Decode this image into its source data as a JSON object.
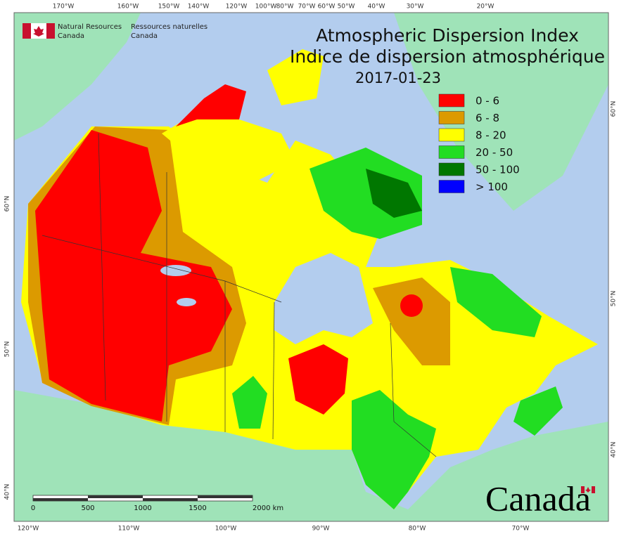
{
  "header": {
    "agency_en": [
      "Natural Resources",
      "Canada"
    ],
    "agency_fr": [
      "Ressources naturelles",
      "Canada"
    ]
  },
  "title": {
    "en": "Atmospheric Dispersion Index",
    "fr": "Indice de dispersion atmosphérique",
    "date": "2017-01-23"
  },
  "legend": [
    {
      "label": "0 - 6",
      "color": "#ff0000"
    },
    {
      "label": "6 - 8",
      "color": "#dc9a00"
    },
    {
      "label": "8 - 20",
      "color": "#ffff00"
    },
    {
      "label": "20 - 50",
      "color": "#22dd22"
    },
    {
      "label": "50 - 100",
      "color": "#007700"
    },
    {
      "label": "> 100",
      "color": "#0000ff"
    }
  ],
  "graticule": {
    "top": [
      "170°W",
      "160°W",
      "150°W",
      "140°W",
      "120°W",
      "100°W",
      "80°W",
      "70°W",
      "60°W",
      "50°W",
      "40°W",
      "30°W",
      "20°W"
    ],
    "bottom": [
      "120°W",
      "110°W",
      "100°W",
      "90°W",
      "80°W",
      "70°W"
    ],
    "left": [
      "60°N",
      "50°N",
      "40°N"
    ],
    "right": [
      "60°N",
      "50°N",
      "40°N"
    ]
  },
  "scale_bar": {
    "labels": [
      "0",
      "500",
      "1000",
      "1500",
      "2000 km"
    ]
  },
  "wordmark": "Canada"
}
